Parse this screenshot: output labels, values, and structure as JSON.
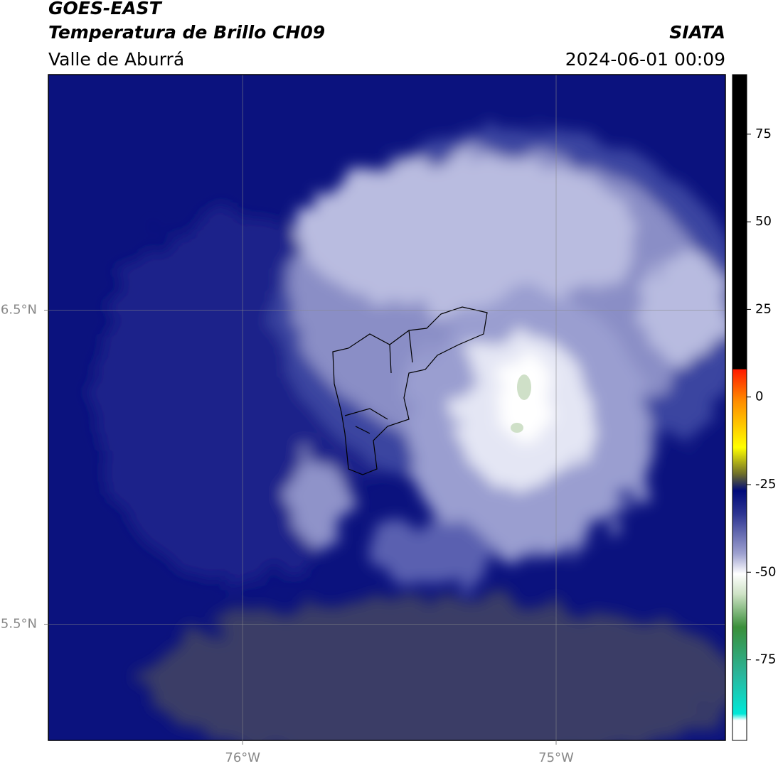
{
  "header": {
    "title": "GOES-EAST",
    "subtitle": "Temperatura de Brillo CH09",
    "region": "Valle de Aburrá",
    "source": "SIATA",
    "datetime": "2024-06-01 00:09"
  },
  "map": {
    "type": "map",
    "lonlim": [
      -76.62,
      -74.46
    ],
    "latlim": [
      5.13,
      7.25
    ],
    "lon_ticks": [
      {
        "value": -76,
        "label": "76°W"
      },
      {
        "value": -75,
        "label": "75°W"
      }
    ],
    "lat_ticks": [
      {
        "value": 6.5,
        "label": "6.5°N"
      },
      {
        "value": 5.5,
        "label": "5.5°N"
      }
    ],
    "grid": true
  },
  "colorbar": {
    "lim": [
      -98,
      92
    ],
    "ticks": [
      -75,
      -50,
      -25,
      0,
      25,
      50,
      75
    ]
  }
}
